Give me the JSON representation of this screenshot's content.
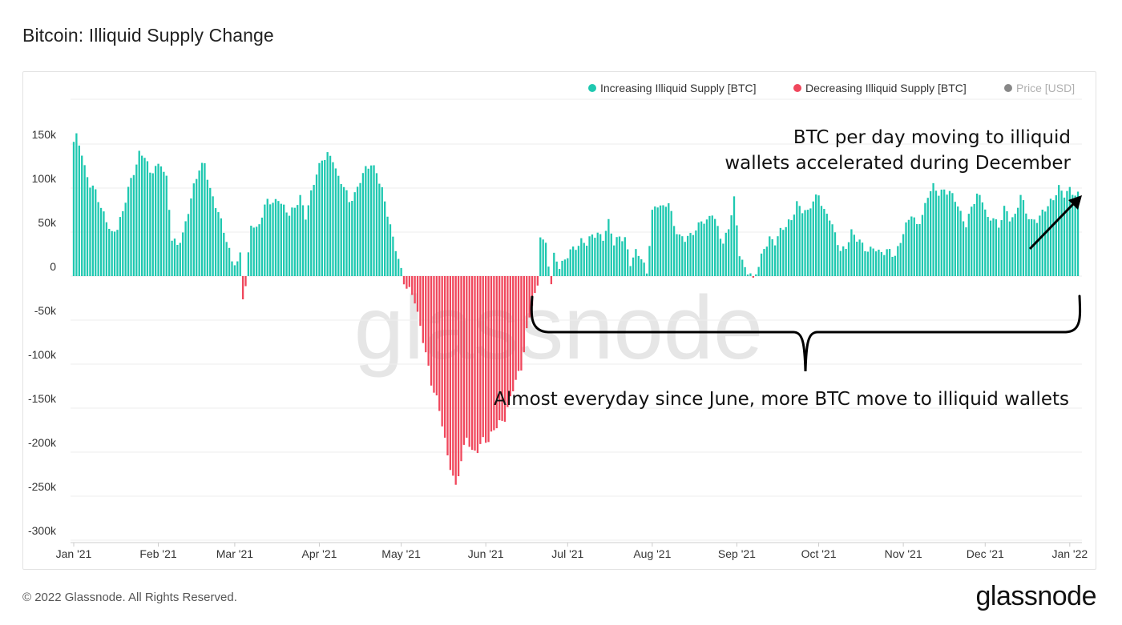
{
  "page": {
    "title": "Bitcoin: Illiquid Supply Change",
    "footer": "© 2022 Glassnode. All Rights Reserved.",
    "logo": "glassnode",
    "watermark": "glassnode"
  },
  "chart_data": {
    "type": "bar",
    "title": "Bitcoin: Illiquid Supply Change",
    "xlabel": "",
    "ylabel": "",
    "ylim": [
      -300000,
      160000
    ],
    "grid": true,
    "legend_position": "top-right",
    "x_ticks": [
      "Jan '21",
      "Feb '21",
      "Mar '21",
      "Apr '21",
      "May '21",
      "Jun '21",
      "Jul '21",
      "Aug '21",
      "Sep '21",
      "Oct '21",
      "Nov '21",
      "Dec '21",
      "Jan '22"
    ],
    "y_ticks": [
      {
        "value": 150000,
        "label": "150k"
      },
      {
        "value": 100000,
        "label": "100k"
      },
      {
        "value": 50000,
        "label": "50k"
      },
      {
        "value": 0,
        "label": "0"
      },
      {
        "value": -50000,
        "label": "-50k"
      },
      {
        "value": -100000,
        "label": "-100k"
      },
      {
        "value": -150000,
        "label": "-150k"
      },
      {
        "value": -200000,
        "label": "-200k"
      },
      {
        "value": -250000,
        "label": "-250k"
      },
      {
        "value": -300000,
        "label": "-300k"
      }
    ],
    "legend": [
      {
        "name": "Increasing Illiquid Supply [BTC]",
        "color": "#1ec8b0"
      },
      {
        "name": "Decreasing Illiquid Supply [BTC]",
        "color": "#f0475c"
      },
      {
        "name": "Price [USD]",
        "color": "#777777",
        "muted": true
      }
    ],
    "colors": {
      "increasing": "#1ec8b0",
      "decreasing": "#f0475c"
    },
    "series_start": "2021-01-01",
    "anchors": [
      [
        "2021-01-01",
        150000
      ],
      [
        "2021-01-02",
        157000
      ],
      [
        "2021-01-03",
        150000
      ],
      [
        "2021-01-04",
        140000
      ],
      [
        "2021-01-05",
        125000
      ],
      [
        "2021-01-07",
        105000
      ],
      [
        "2021-01-09",
        95000
      ],
      [
        "2021-01-11",
        75000
      ],
      [
        "2021-01-13",
        65000
      ],
      [
        "2021-01-15",
        50000
      ],
      [
        "2021-01-17",
        55000
      ],
      [
        "2021-01-19",
        70000
      ],
      [
        "2021-01-21",
        100000
      ],
      [
        "2021-01-23",
        120000
      ],
      [
        "2021-01-25",
        140000
      ],
      [
        "2021-01-27",
        135000
      ],
      [
        "2021-01-29",
        115000
      ],
      [
        "2021-01-31",
        125000
      ],
      [
        "2021-02-02",
        130000
      ],
      [
        "2021-02-04",
        110000
      ],
      [
        "2021-02-06",
        40000
      ],
      [
        "2021-02-08",
        35000
      ],
      [
        "2021-02-10",
        50000
      ],
      [
        "2021-02-12",
        75000
      ],
      [
        "2021-02-14",
        100000
      ],
      [
        "2021-02-16",
        120000
      ],
      [
        "2021-02-18",
        130000
      ],
      [
        "2021-02-20",
        100000
      ],
      [
        "2021-02-22",
        80000
      ],
      [
        "2021-02-24",
        60000
      ],
      [
        "2021-02-26",
        40000
      ],
      [
        "2021-02-28",
        20000
      ],
      [
        "2021-03-02",
        15000
      ],
      [
        "2021-03-03",
        25000
      ],
      [
        "2021-03-04",
        -25000
      ],
      [
        "2021-03-05",
        -15000
      ],
      [
        "2021-03-07",
        60000
      ],
      [
        "2021-03-09",
        55000
      ],
      [
        "2021-03-11",
        70000
      ],
      [
        "2021-03-13",
        85000
      ],
      [
        "2021-03-15",
        80000
      ],
      [
        "2021-03-17",
        90000
      ],
      [
        "2021-03-19",
        80000
      ],
      [
        "2021-03-21",
        70000
      ],
      [
        "2021-03-23",
        75000
      ],
      [
        "2021-03-25",
        90000
      ],
      [
        "2021-03-27",
        70000
      ],
      [
        "2021-03-29",
        95000
      ],
      [
        "2021-03-31",
        115000
      ],
      [
        "2021-04-02",
        130000
      ],
      [
        "2021-04-04",
        140000
      ],
      [
        "2021-04-06",
        135000
      ],
      [
        "2021-04-08",
        110000
      ],
      [
        "2021-04-10",
        100000
      ],
      [
        "2021-04-12",
        85000
      ],
      [
        "2021-04-14",
        95000
      ],
      [
        "2021-04-16",
        110000
      ],
      [
        "2021-04-18",
        120000
      ],
      [
        "2021-04-20",
        125000
      ],
      [
        "2021-04-22",
        120000
      ],
      [
        "2021-04-24",
        100000
      ],
      [
        "2021-04-26",
        70000
      ],
      [
        "2021-04-28",
        40000
      ],
      [
        "2021-04-30",
        20000
      ],
      [
        "2021-05-02",
        -5000
      ],
      [
        "2021-05-04",
        -15000
      ],
      [
        "2021-05-06",
        -30000
      ],
      [
        "2021-05-08",
        -60000
      ],
      [
        "2021-05-10",
        -85000
      ],
      [
        "2021-05-12",
        -120000
      ],
      [
        "2021-05-14",
        -140000
      ],
      [
        "2021-05-16",
        -170000
      ],
      [
        "2021-05-18",
        -205000
      ],
      [
        "2021-05-20",
        -225000
      ],
      [
        "2021-05-21",
        -238000
      ],
      [
        "2021-05-23",
        -210000
      ],
      [
        "2021-05-25",
        -185000
      ],
      [
        "2021-05-27",
        -200000
      ],
      [
        "2021-05-29",
        -195000
      ],
      [
        "2021-05-31",
        -185000
      ],
      [
        "2021-06-02",
        -190000
      ],
      [
        "2021-06-04",
        -175000
      ],
      [
        "2021-06-06",
        -165000
      ],
      [
        "2021-06-08",
        -160000
      ],
      [
        "2021-06-10",
        -140000
      ],
      [
        "2021-06-12",
        -120000
      ],
      [
        "2021-06-14",
        -105000
      ],
      [
        "2021-06-16",
        -60000
      ],
      [
        "2021-06-18",
        -30000
      ],
      [
        "2021-06-20",
        -15000
      ],
      [
        "2021-06-21",
        45000
      ],
      [
        "2021-06-23",
        35000
      ],
      [
        "2021-06-25",
        -5000
      ],
      [
        "2021-06-26",
        25000
      ],
      [
        "2021-06-28",
        10000
      ],
      [
        "2021-06-30",
        15000
      ],
      [
        "2021-07-02",
        30000
      ],
      [
        "2021-07-04",
        35000
      ],
      [
        "2021-07-06",
        40000
      ],
      [
        "2021-07-08",
        35000
      ],
      [
        "2021-07-10",
        45000
      ],
      [
        "2021-07-12",
        50000
      ],
      [
        "2021-07-14",
        45000
      ],
      [
        "2021-07-16",
        60000
      ],
      [
        "2021-07-18",
        35000
      ],
      [
        "2021-07-20",
        45000
      ],
      [
        "2021-07-22",
        45000
      ],
      [
        "2021-07-24",
        15000
      ],
      [
        "2021-07-26",
        25000
      ],
      [
        "2021-07-28",
        20000
      ],
      [
        "2021-07-30",
        5000
      ],
      [
        "2021-08-01",
        75000
      ],
      [
        "2021-08-03",
        80000
      ],
      [
        "2021-08-05",
        75000
      ],
      [
        "2021-08-07",
        85000
      ],
      [
        "2021-08-09",
        60000
      ],
      [
        "2021-08-11",
        45000
      ],
      [
        "2021-08-13",
        40000
      ],
      [
        "2021-08-15",
        45000
      ],
      [
        "2021-08-17",
        55000
      ],
      [
        "2021-08-19",
        65000
      ],
      [
        "2021-08-21",
        60000
      ],
      [
        "2021-08-23",
        70000
      ],
      [
        "2021-08-25",
        55000
      ],
      [
        "2021-08-27",
        40000
      ],
      [
        "2021-08-29",
        55000
      ],
      [
        "2021-08-31",
        85000
      ],
      [
        "2021-09-02",
        25000
      ],
      [
        "2021-09-04",
        10000
      ],
      [
        "2021-09-06",
        5000
      ],
      [
        "2021-09-07",
        -5000
      ],
      [
        "2021-09-09",
        10000
      ],
      [
        "2021-09-11",
        30000
      ],
      [
        "2021-09-13",
        45000
      ],
      [
        "2021-09-15",
        40000
      ],
      [
        "2021-09-17",
        50000
      ],
      [
        "2021-09-19",
        55000
      ],
      [
        "2021-09-21",
        65000
      ],
      [
        "2021-09-23",
        85000
      ],
      [
        "2021-09-25",
        75000
      ],
      [
        "2021-09-27",
        70000
      ],
      [
        "2021-09-29",
        85000
      ],
      [
        "2021-10-01",
        95000
      ],
      [
        "2021-10-03",
        75000
      ],
      [
        "2021-10-05",
        65000
      ],
      [
        "2021-10-07",
        45000
      ],
      [
        "2021-10-09",
        30000
      ],
      [
        "2021-10-11",
        35000
      ],
      [
        "2021-10-13",
        50000
      ],
      [
        "2021-10-15",
        40000
      ],
      [
        "2021-10-17",
        35000
      ],
      [
        "2021-10-19",
        30000
      ],
      [
        "2021-10-21",
        35000
      ],
      [
        "2021-10-23",
        25000
      ],
      [
        "2021-10-25",
        25000
      ],
      [
        "2021-10-27",
        30000
      ],
      [
        "2021-10-29",
        25000
      ],
      [
        "2021-10-31",
        40000
      ],
      [
        "2021-11-02",
        55000
      ],
      [
        "2021-11-04",
        70000
      ],
      [
        "2021-11-06",
        60000
      ],
      [
        "2021-11-08",
        70000
      ],
      [
        "2021-11-10",
        90000
      ],
      [
        "2021-11-12",
        100000
      ],
      [
        "2021-11-14",
        95000
      ],
      [
        "2021-11-16",
        100000
      ],
      [
        "2021-11-18",
        95000
      ],
      [
        "2021-11-20",
        85000
      ],
      [
        "2021-11-22",
        70000
      ],
      [
        "2021-11-24",
        60000
      ],
      [
        "2021-11-26",
        80000
      ],
      [
        "2021-11-28",
        90000
      ],
      [
        "2021-11-30",
        85000
      ],
      [
        "2021-12-02",
        65000
      ],
      [
        "2021-12-04",
        70000
      ],
      [
        "2021-12-06",
        55000
      ],
      [
        "2021-12-08",
        75000
      ],
      [
        "2021-12-10",
        65000
      ],
      [
        "2021-12-12",
        70000
      ],
      [
        "2021-12-14",
        95000
      ],
      [
        "2021-12-16",
        70000
      ],
      [
        "2021-12-18",
        60000
      ],
      [
        "2021-12-20",
        65000
      ],
      [
        "2021-12-22",
        75000
      ],
      [
        "2021-12-24",
        80000
      ],
      [
        "2021-12-26",
        85000
      ],
      [
        "2021-12-28",
        100000
      ],
      [
        "2021-12-30",
        95000
      ],
      [
        "2022-01-01",
        100000
      ],
      [
        "2022-01-03",
        90000
      ]
    ]
  },
  "annotations": {
    "top_right_text": [
      "BTC per day moving to illiquid",
      "wallets accelerated during December"
    ],
    "bottom_text": "Almost everyday since June, more BTC move to illiquid wallets"
  }
}
